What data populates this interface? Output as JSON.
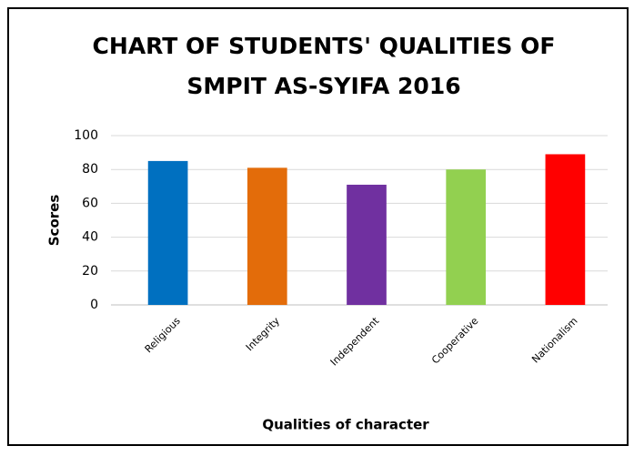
{
  "chart_data": {
    "type": "bar",
    "title": [
      "CHART OF STUDENTS' QUALITIES OF",
      "SMPIT AS-SYIFA 2016"
    ],
    "x_label": "Qualities of character",
    "y_label": "Scores",
    "categories": [
      "Religious",
      "Integrity",
      "Independent",
      "Cooperative",
      "Nationalism"
    ],
    "values": [
      85,
      81,
      71,
      80,
      89
    ],
    "colors": [
      "#0070c0",
      "#e36c0a",
      "#7030a0",
      "#92d050",
      "#ff0000"
    ],
    "ylim": [
      0,
      100
    ],
    "yticks": [
      0,
      20,
      40,
      60,
      80,
      100
    ],
    "grid": true
  }
}
